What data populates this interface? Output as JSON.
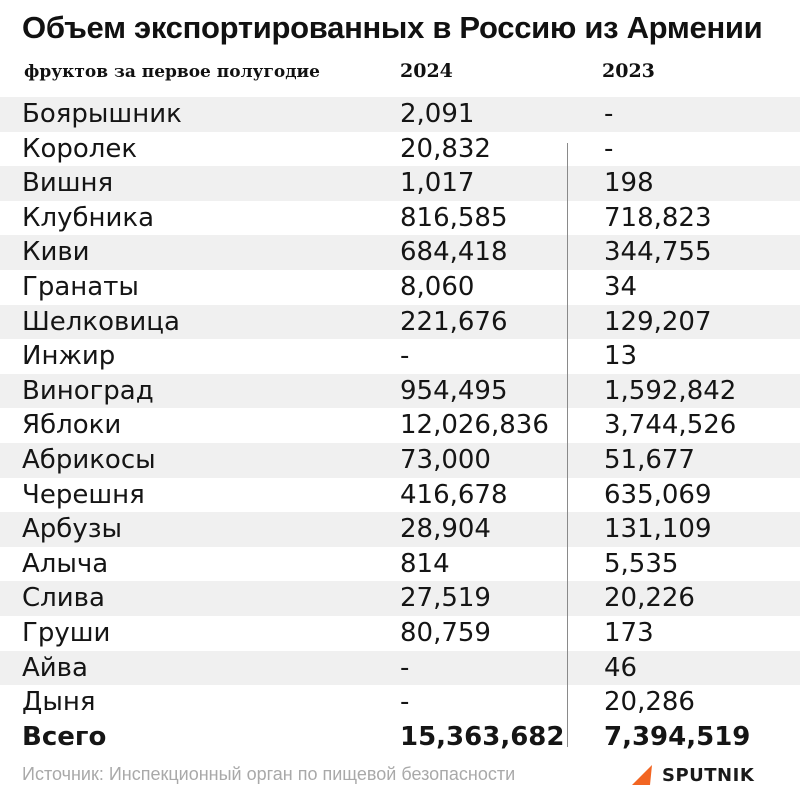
{
  "title": "Объем экспортированных в Россию из Армении",
  "subtitle": "фруктов за первое полугодие",
  "columns": [
    "2024",
    "2023"
  ],
  "brand_color": "#f26522",
  "chart_data": {
    "type": "table",
    "title": "Объем экспортированных в Россию из Армении",
    "subtitle": "фруктов за первое полугодие",
    "columns": [
      "",
      "2024",
      "2023"
    ],
    "rows": [
      {
        "name": "Боярышник",
        "y2024": "2,091",
        "y2023": "-"
      },
      {
        "name": "Королек",
        "y2024": "20,832",
        "y2023": "-"
      },
      {
        "name": "Вишня",
        "y2024": "1,017",
        "y2023": "198"
      },
      {
        "name": "Клубника",
        "y2024": "816,585",
        "y2023": "718,823"
      },
      {
        "name": "Киви",
        "y2024": "684,418",
        "y2023": "344,755"
      },
      {
        "name": "Гранаты",
        "y2024": "8,060",
        "y2023": "34"
      },
      {
        "name": "Шелковица",
        "y2024": "221,676",
        "y2023": "129,207"
      },
      {
        "name": "Инжир",
        "y2024": "-",
        "y2023": "13"
      },
      {
        "name": "Виноград",
        "y2024": "954,495",
        "y2023": "1,592,842"
      },
      {
        "name": "Яблоки",
        "y2024": "12,026,836",
        "y2023": "3,744,526"
      },
      {
        "name": "Абрикосы",
        "y2024": "73,000",
        "y2023": "51,677"
      },
      {
        "name": "Черешня",
        "y2024": "416,678",
        "y2023": "635,069"
      },
      {
        "name": "Арбузы",
        "y2024": "28,904",
        "y2023": "131,109"
      },
      {
        "name": "Алыча",
        "y2024": "814",
        "y2023": "5,535"
      },
      {
        "name": "Слива",
        "y2024": "27,519",
        "y2023": "20,226"
      },
      {
        "name": "Груши",
        "y2024": "80,759",
        "y2023": "173"
      },
      {
        "name": "Айва",
        "y2024": "-",
        "y2023": "46"
      },
      {
        "name": "Дыня",
        "y2024": "-",
        "y2023": "20,286"
      }
    ],
    "total": {
      "name": "Всего",
      "y2024": "15,363,682",
      "y2023": "7,394,519"
    }
  },
  "source": "Источник: Инспекционный орган по пищевой безопасности",
  "logo": {
    "text": "SPUTNIK",
    "icon": "sputnik-logo-icon"
  }
}
